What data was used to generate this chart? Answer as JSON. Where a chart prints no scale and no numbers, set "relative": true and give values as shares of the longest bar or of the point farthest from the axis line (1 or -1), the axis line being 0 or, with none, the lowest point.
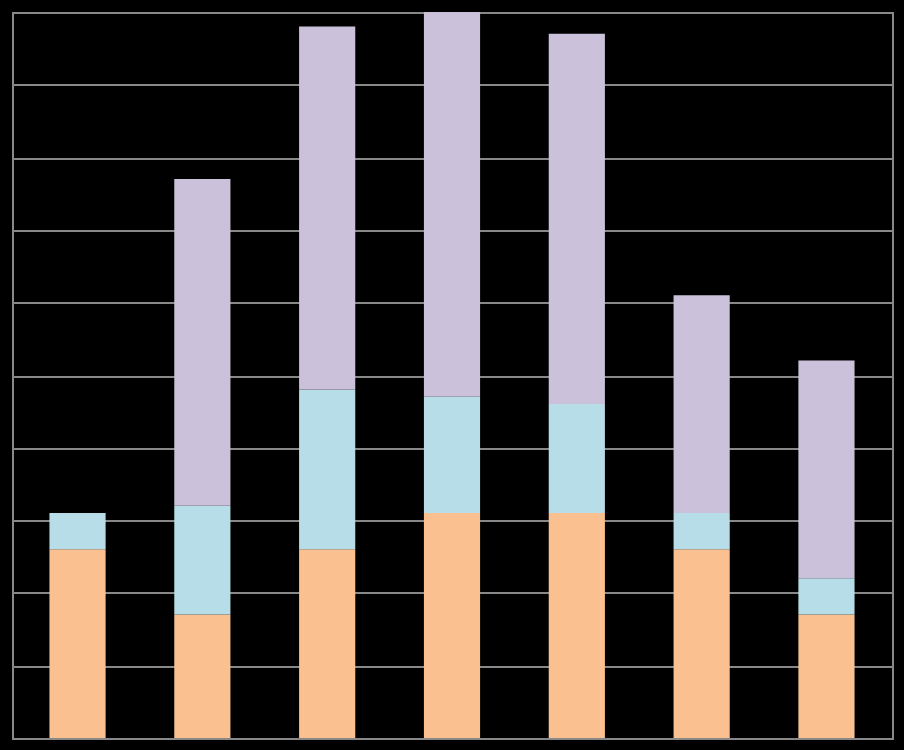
{
  "chart_data": {
    "type": "bar",
    "relative": true,
    "stacked": true,
    "grid": "y",
    "tick_labels": false,
    "categories": [
      null,
      null,
      null,
      null,
      null,
      null,
      null
    ],
    "series": [
      {
        "color": "#fac090",
        "values": [
          0.26,
          0.17,
          0.26,
          0.31,
          0.31,
          0.26,
          0.17
        ]
      },
      {
        "color": "#b7dee8",
        "values": [
          0.05,
          0.15,
          0.22,
          0.16,
          0.15,
          0.05,
          0.05
        ]
      },
      {
        "color": "#ccc1da",
        "values": [
          0,
          0.45,
          0.5,
          0.53,
          0.51,
          0.3,
          0.3
        ]
      }
    ]
  }
}
